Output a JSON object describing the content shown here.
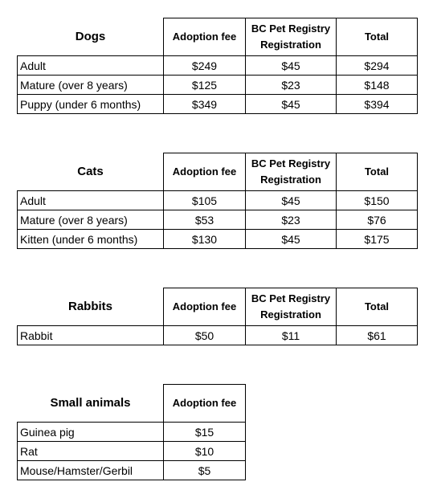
{
  "headers": {
    "adoption_fee": "Adoption fee",
    "bc_registry_line1": "BC Pet Registry",
    "bc_registry_line2": "Registration",
    "total": "Total"
  },
  "dogs": {
    "title": "Dogs",
    "rows": [
      {
        "label": "Adult",
        "fee": "$249",
        "reg": "$45",
        "total": "$294"
      },
      {
        "label": "Mature (over 8 years)",
        "fee": "$125",
        "reg": "$23",
        "total": "$148"
      },
      {
        "label": "Puppy (under 6 months)",
        "fee": "$349",
        "reg": "$45",
        "total": "$394"
      }
    ]
  },
  "cats": {
    "title": "Cats",
    "rows": [
      {
        "label": "Adult",
        "fee": "$105",
        "reg": "$45",
        "total": "$150"
      },
      {
        "label": "Mature (over 8 years)",
        "fee": "$53",
        "reg": "$23",
        "total": "$76"
      },
      {
        "label": "Kitten (under 6 months)",
        "fee": "$130",
        "reg": "$45",
        "total": "$175"
      }
    ]
  },
  "rabbits": {
    "title": "Rabbits",
    "rows": [
      {
        "label": "Rabbit",
        "fee": "$50",
        "reg": "$11",
        "total": "$61"
      }
    ]
  },
  "small_animals": {
    "title": "Small animals",
    "rows": [
      {
        "label": "Guinea pig",
        "fee": "$15"
      },
      {
        "label": "Rat",
        "fee": "$10"
      },
      {
        "label": "Mouse/Hamster/Gerbil",
        "fee": "$5"
      }
    ]
  }
}
